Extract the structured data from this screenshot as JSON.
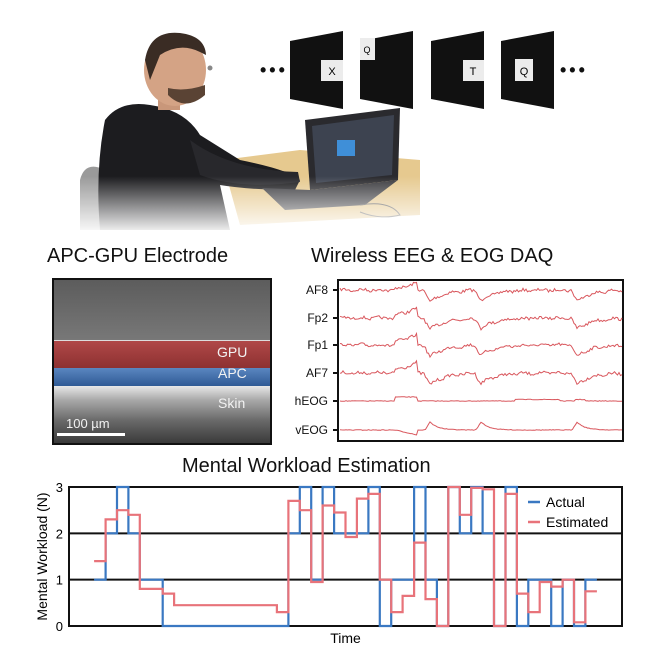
{
  "top_scene": {
    "stimulus_letters": [
      "X",
      "Q",
      "T",
      "Q"
    ],
    "ellipsis": "•••"
  },
  "electrode_panel": {
    "title": "APC-GPU Electrode",
    "layers": [
      "GPU",
      "APC",
      "Skin"
    ],
    "layer_colors": {
      "GPU": "#a83a3a",
      "APC": "#3f6fae",
      "Skin": "#bdbdbd"
    },
    "scale_bar": "100 µm"
  },
  "daq_panel": {
    "title": "Wireless EEG & EOG DAQ",
    "channels": [
      "AF8",
      "Fp2",
      "Fp1",
      "AF7",
      "hEOG",
      "vEOG"
    ],
    "trace_color": "#d9575d"
  },
  "chart_data": {
    "type": "line",
    "title": "Mental Workload Estimation",
    "xlabel": "Time",
    "ylabel": "Mental Workload (N)",
    "ylim": [
      0,
      3
    ],
    "yticks": [
      "0",
      "1",
      "2",
      "3"
    ],
    "grid": "horizontal at 1, 2, 3",
    "legend": "top-right",
    "step": true,
    "xlim": [
      0,
      48.4
    ],
    "x_start": 2.2,
    "segment_durations": [
      1,
      1,
      1,
      1,
      2,
      1,
      9,
      1,
      1,
      1,
      1,
      1,
      1,
      1,
      1,
      1,
      1,
      1,
      1,
      1,
      1,
      1,
      1,
      1,
      1,
      1,
      1,
      1,
      1,
      1,
      1,
      1,
      1,
      1,
      1
    ],
    "series": [
      {
        "name": "Actual",
        "color": "#3a78c2",
        "values": [
          1,
          2,
          3,
          2,
          1,
          0,
          0,
          0,
          2,
          3,
          1,
          3,
          2,
          2,
          2,
          3,
          0,
          1,
          1,
          3,
          1,
          0,
          3,
          2,
          3,
          2,
          0,
          3,
          0,
          1,
          1,
          0,
          1,
          0,
          1
        ]
      },
      {
        "name": "Estimated",
        "color": "#e8737a",
        "values": [
          1.4,
          2.3,
          2.5,
          2.4,
          0.8,
          0.7,
          0.45,
          0.3,
          2.7,
          2.5,
          0.95,
          2.6,
          2.45,
          1.92,
          2.75,
          2.85,
          1.0,
          0.3,
          0.65,
          1.8,
          0.58,
          0,
          3,
          2.4,
          2.98,
          2.95,
          0,
          2.85,
          0.7,
          0.3,
          0.95,
          0.85,
          1.0,
          0.08,
          0.75
        ]
      }
    ]
  }
}
